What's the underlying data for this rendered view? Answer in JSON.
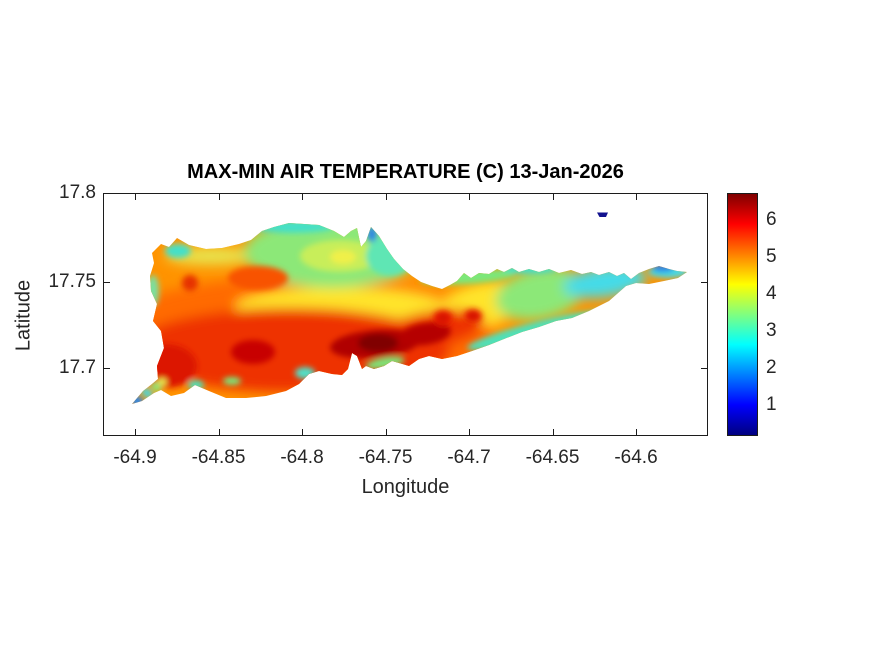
{
  "figure": {
    "title": "MAX-MIN AIR TEMPERATURE (C) 13-Jan-2026",
    "xlabel": "Longitude",
    "ylabel": "Latitude"
  },
  "axes": {
    "x_ticks": [
      "-64.9",
      "-64.85",
      "-64.8",
      "-64.75",
      "-64.7",
      "-64.65",
      "-64.6"
    ],
    "y_ticks": [
      "17.8",
      "17.75",
      "17.7"
    ],
    "x_range": [
      -64.92,
      -64.56
    ],
    "y_range": [
      17.66,
      17.8
    ]
  },
  "colorbar": {
    "ticks": [
      "6",
      "5",
      "4",
      "3",
      "2",
      "1"
    ],
    "colormap": "jet",
    "stops": [
      "#000080",
      "#0000FF",
      "#00FFFF",
      "#FFFF00",
      "#FF0000",
      "#800000"
    ],
    "value_range": [
      0.2,
      6.7
    ]
  },
  "chart_data": {
    "type": "filled_contour_map",
    "title": "MAX-MIN AIR TEMPERATURE (C) 13-Jan-2026",
    "xlabel": "Longitude",
    "ylabel": "Latitude",
    "xlim": [
      -64.92,
      -64.56
    ],
    "ylim": [
      17.66,
      17.8
    ],
    "colormap": "jet",
    "colorbar_ticks": [
      1,
      2,
      3,
      4,
      5,
      6
    ],
    "units": "degrees C (max minus min air temperature)",
    "region": "island spanning lon -64.90 to -64.57, lat 17.68 to 17.79, plus small islet near lon -64.62, lat 17.788",
    "features": [
      {
        "name": "maximum dark-red core",
        "lon": -64.755,
        "lat": 17.714,
        "value": 6.5
      },
      {
        "name": "secondary dark-red core",
        "lon": -64.727,
        "lat": 17.719,
        "value": 6.3
      },
      {
        "name": "southwest dark-red core",
        "lon": -64.829,
        "lat": 17.709,
        "value": 6.2
      },
      {
        "name": "red spot east-central",
        "lon": -64.716,
        "lat": 17.728,
        "value": 6.0
      },
      {
        "name": "red spot east-central 2",
        "lon": -64.698,
        "lat": 17.73,
        "value": 6.0
      },
      {
        "name": "west red spot",
        "lon": -64.867,
        "lat": 17.748,
        "value": 5.8
      },
      {
        "name": "green north-central area",
        "lon": -64.778,
        "lat": 17.764,
        "value": 3.5
      },
      {
        "name": "cyan east tail",
        "lon": -64.61,
        "lat": 17.75,
        "value": 2.5
      },
      {
        "name": "blue spot near east tip",
        "lon": -64.585,
        "lat": 17.757,
        "value": 1.8
      },
      {
        "name": "blue west tip (Sandy Point)",
        "lon": -64.899,
        "lat": 17.681,
        "value": 2.0
      },
      {
        "name": "navy islet (Buck Island)",
        "lon": -64.621,
        "lat": 17.788,
        "value": 0.5
      }
    ]
  }
}
